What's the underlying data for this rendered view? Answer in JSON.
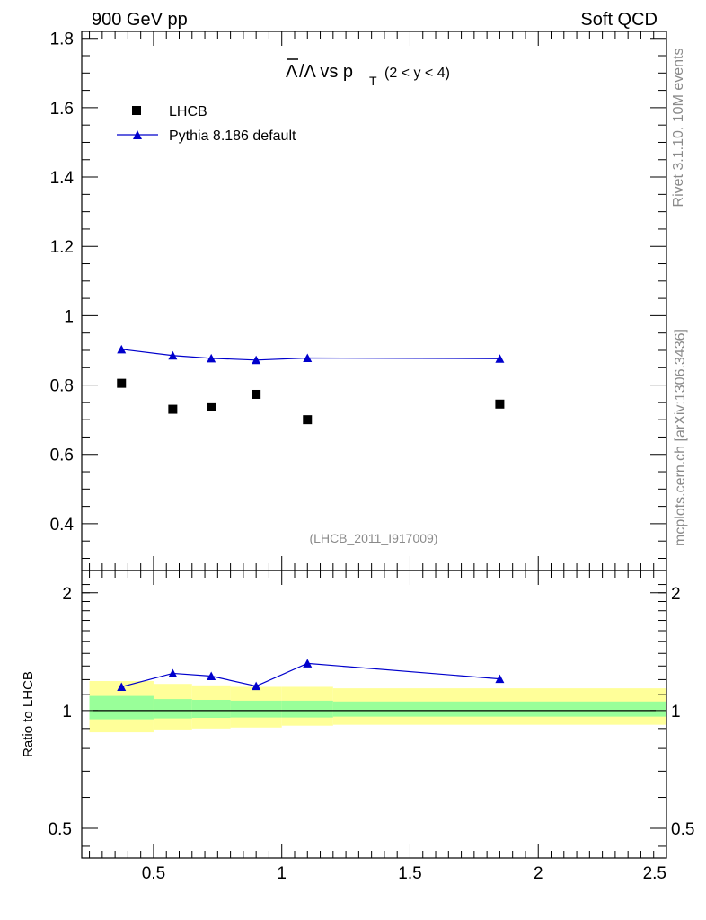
{
  "header": {
    "left": "900 GeV pp",
    "right": "Soft QCD"
  },
  "side_labels": {
    "top": "Rivet 3.1.10,  10M events",
    "bottom": "mcplots.cern.ch [arXiv:1306.3436]"
  },
  "chart_data": [
    {
      "type": "scatter",
      "title_parts": {
        "main": "/Λ vs p",
        "overline": "Λ",
        "sub": "T",
        "cut": "(2 < y < 4)"
      },
      "analysis_label": "(LHCB_2011_I917009)",
      "xlim": [
        0.22,
        2.5
      ],
      "ylim": [
        0.265,
        1.82
      ],
      "yticks": [
        0.4,
        0.6,
        0.8,
        1,
        1.2,
        1.4,
        1.6,
        1.8
      ],
      "ytick_labels": [
        "0.4",
        "0.6",
        "0.8",
        "1",
        "1.2",
        "1.4",
        "1.6",
        "1.8"
      ],
      "colors": {
        "data": "#000000",
        "mc": "#0000cc"
      },
      "series": [
        {
          "name": "LHCB",
          "marker": "square",
          "x": [
            0.375,
            0.575,
            0.725,
            0.9,
            1.1,
            1.85
          ],
          "values": [
            0.805,
            0.73,
            0.737,
            0.773,
            0.7,
            0.745
          ]
        },
        {
          "name": "Pythia 8.186 default",
          "marker": "triangle",
          "line": true,
          "x": [
            0.375,
            0.575,
            0.725,
            0.9,
            1.1,
            1.85
          ],
          "values": [
            0.903,
            0.885,
            0.877,
            0.872,
            0.878,
            0.876
          ]
        }
      ]
    },
    {
      "type": "line",
      "ylabel": "Ratio to LHCB",
      "xlim": [
        0.22,
        2.5
      ],
      "ylim": [
        0.42,
        2.28
      ],
      "ylog": true,
      "xticks": [
        0.5,
        1,
        1.5,
        2,
        2.5
      ],
      "xtick_labels": [
        "0.5",
        "1",
        "1.5",
        "2",
        "2.5"
      ],
      "yticks": [
        0.5,
        1,
        2
      ],
      "ytick_labels": [
        "0.5",
        "1",
        "2"
      ],
      "colors": {
        "band_outer": "#ffff99",
        "band_inner": "#99ff99",
        "mc": "#0000cc"
      },
      "bins": [
        {
          "lo": 0.25,
          "hi": 0.5,
          "outer": [
            0.88,
            1.19
          ],
          "inner": [
            0.95,
            1.09
          ]
        },
        {
          "lo": 0.5,
          "hi": 0.65,
          "outer": [
            0.895,
            1.17
          ],
          "inner": [
            0.955,
            1.07
          ]
        },
        {
          "lo": 0.65,
          "hi": 0.8,
          "outer": [
            0.9,
            1.16
          ],
          "inner": [
            0.958,
            1.065
          ]
        },
        {
          "lo": 0.8,
          "hi": 1.0,
          "outer": [
            0.905,
            1.15
          ],
          "inner": [
            0.96,
            1.06
          ]
        },
        {
          "lo": 1.0,
          "hi": 1.2,
          "outer": [
            0.915,
            1.15
          ],
          "inner": [
            0.96,
            1.06
          ]
        },
        {
          "lo": 1.2,
          "hi": 2.5,
          "outer": [
            0.92,
            1.14
          ],
          "inner": [
            0.965,
            1.055
          ]
        }
      ],
      "series": [
        {
          "name": "Pythia 8.186 default / LHCB",
          "x": [
            0.375,
            0.575,
            0.725,
            0.9,
            1.1,
            1.85
          ],
          "values": [
            1.15,
            1.245,
            1.225,
            1.155,
            1.32,
            1.205
          ]
        }
      ]
    }
  ]
}
